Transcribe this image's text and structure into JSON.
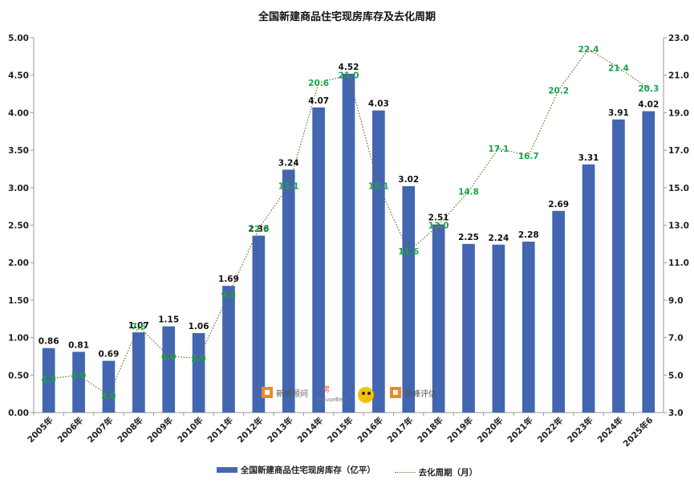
{
  "chart_data": {
    "type": "bar",
    "title": "全国新建商品住宅现房库存及去化周期",
    "categories": [
      "2005年",
      "2006年",
      "2007年",
      "2008年",
      "2009年",
      "2010年",
      "2011年",
      "2012年",
      "2013年",
      "2014年",
      "2015年",
      "2016年",
      "2017年",
      "2018年",
      "2019年",
      "2020年",
      "2021年",
      "2022年",
      "2023年",
      "2024年",
      "2025年6"
    ],
    "left_axis": {
      "ylim": [
        0,
        5
      ],
      "ticks": [
        "0.00",
        "0.50",
        "1.00",
        "1.50",
        "2.00",
        "2.50",
        "3.00",
        "3.50",
        "4.00",
        "4.50",
        "5.00"
      ]
    },
    "right_axis": {
      "ylim": [
        3,
        23
      ],
      "ticks": [
        "3.0",
        "5.0",
        "7.0",
        "9.0",
        "11.0",
        "13.0",
        "15.0",
        "17.0",
        "19.0",
        "21.0",
        "23.0"
      ]
    },
    "series": [
      {
        "name": "全国新建商品住宅现房库存（亿平）",
        "type": "bar",
        "axis": "left",
        "color": "#4366b0",
        "values": [
          0.86,
          0.81,
          0.69,
          1.07,
          1.15,
          1.06,
          1.69,
          2.36,
          3.24,
          4.07,
          4.52,
          4.03,
          3.02,
          2.51,
          2.25,
          2.24,
          2.28,
          2.69,
          3.31,
          3.91,
          4.02
        ],
        "labels": [
          "0.86",
          "0.81",
          "0.69",
          "1.07",
          "1.15",
          "1.06",
          "1.69",
          "2.36",
          "3.24",
          "4.07",
          "4.52",
          "4.03",
          "3.02",
          "2.51",
          "2.25",
          "2.24",
          "2.28",
          "2.69",
          "3.31",
          "3.91",
          "4.02"
        ]
      },
      {
        "name": "去化周期（月）",
        "type": "line",
        "axis": "right",
        "color": "#6b6b2a",
        "label_color": "#1aa34a",
        "values": [
          4.8,
          5.0,
          3.9,
          7.6,
          6.0,
          5.9,
          9.3,
          12.8,
          15.1,
          20.6,
          21.0,
          15.1,
          11.6,
          13.0,
          14.8,
          17.1,
          16.7,
          20.2,
          22.4,
          21.4,
          20.3
        ],
        "labels": [
          "4.8",
          "5.0",
          "3.9",
          "7.6",
          "6.0",
          "5.9",
          "9.3",
          "12.8",
          "15.1",
          "20.6",
          "21.0",
          "15.1",
          "11.6",
          "13.0",
          "14.8",
          "17.1",
          "16.7",
          "20.2",
          "22.4",
          "21.4",
          "20.3"
        ]
      }
    ],
    "legend_position": "bottom",
    "grid": false
  },
  "legend": {
    "bar_label": "全国新建商品住宅现房库存（亿平）",
    "line_label": "去化周期（月）"
  },
  "watermark": {
    "brand1": "新峰顾问",
    "brand2": "HouseBee",
    "brand3": "新峰评估"
  }
}
